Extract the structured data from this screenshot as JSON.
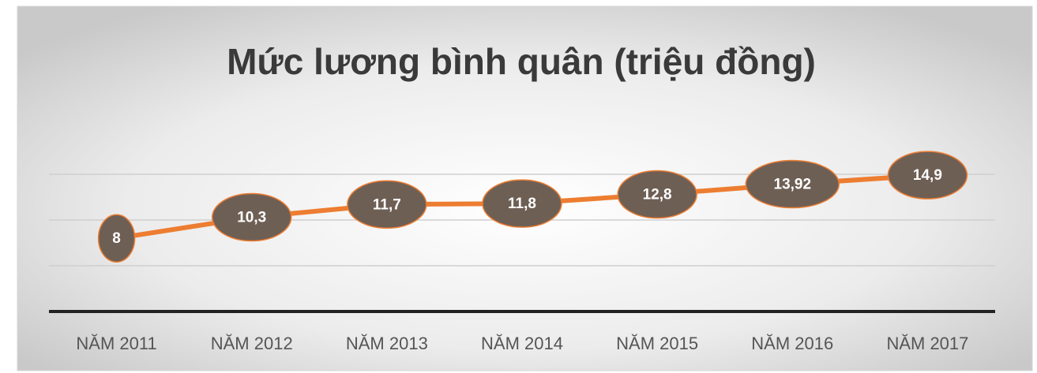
{
  "chart_data": {
    "type": "line",
    "title": "Mức lương bình quân (triệu đồng)",
    "categories": [
      "NĂM 2011",
      "NĂM 2012",
      "NĂM 2013",
      "NĂM 2014",
      "NĂM 2015",
      "NĂM 2016",
      "NĂM 2017"
    ],
    "series": [
      {
        "name": "Mức lương bình quân",
        "color": "#ed7d31",
        "values": [
          8,
          10.3,
          11.7,
          11.8,
          12.8,
          13.92,
          14.9
        ],
        "value_labels": [
          "8",
          "10,3",
          "11,7",
          "11,8",
          "12,8",
          "13,92",
          "14,9"
        ]
      }
    ],
    "marker_color": "#6e5f55",
    "ylim": [
      0,
      20
    ],
    "yticks": [
      0,
      5,
      10,
      15
    ],
    "grid": true
  }
}
